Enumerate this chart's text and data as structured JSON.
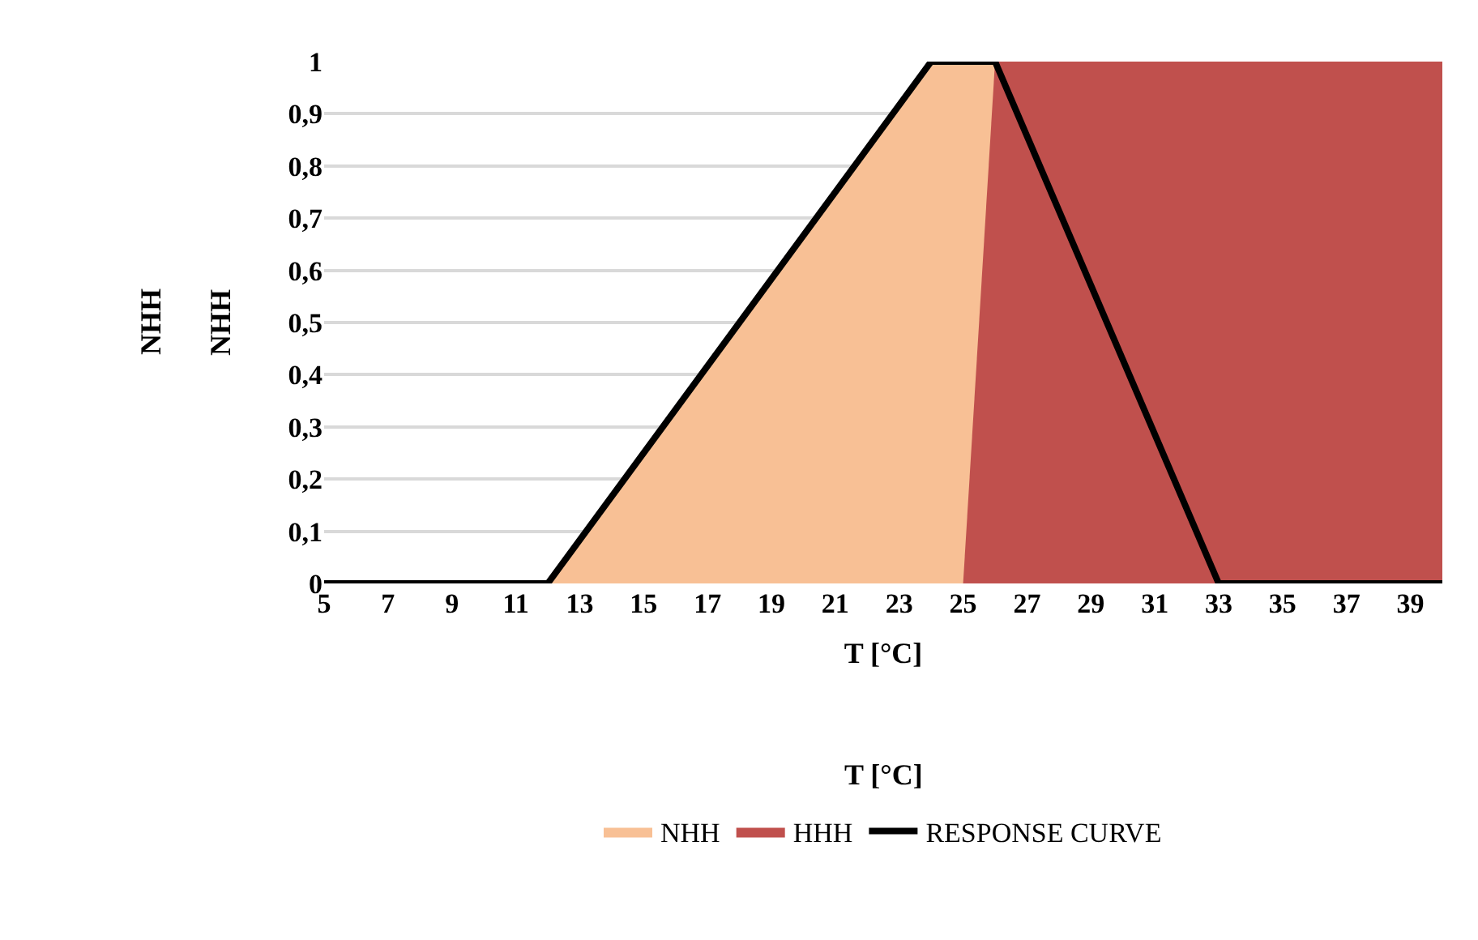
{
  "chart_data": {
    "type": "area",
    "xlabel": "T [°C]",
    "ylabel": "NHH",
    "annotations": [
      "NHH",
      "T [°C]"
    ],
    "series": [
      {
        "name": "NHH",
        "color": "#f8c095",
        "x": [
          12,
          24,
          26
        ],
        "values": [
          0,
          1,
          1
        ]
      },
      {
        "name": "HHH",
        "color": "#c0504d",
        "x": [
          25,
          26,
          40
        ],
        "values": [
          0,
          1,
          1
        ]
      },
      {
        "name": "RESPONSE CURVE",
        "type": "line",
        "color": "#000000",
        "x": [
          5,
          12,
          24,
          26,
          33,
          40
        ],
        "values": [
          0,
          0,
          1,
          1,
          0,
          0
        ]
      }
    ],
    "xlim": [
      5,
      40
    ],
    "xticks": [
      5,
      7,
      9,
      11,
      13,
      15,
      17,
      19,
      21,
      23,
      25,
      27,
      29,
      31,
      33,
      35,
      37,
      39
    ],
    "ylim": [
      0,
      1
    ],
    "yticks": [
      0,
      {
        "value": 0.1,
        "label": "0,1"
      },
      {
        "value": 0.2,
        "label": "0,2"
      },
      {
        "value": 0.3,
        "label": "0,3"
      },
      {
        "value": 0.4,
        "label": "0,4"
      },
      {
        "value": 0.5,
        "label": "0,5"
      },
      {
        "value": 0.6,
        "label": "0,6"
      },
      {
        "value": 0.7,
        "label": "0,7"
      },
      {
        "value": 0.8,
        "label": "0,8"
      },
      {
        "value": 0.9,
        "label": "0,9"
      },
      1
    ],
    "grid": "y",
    "legend": "bottom"
  }
}
